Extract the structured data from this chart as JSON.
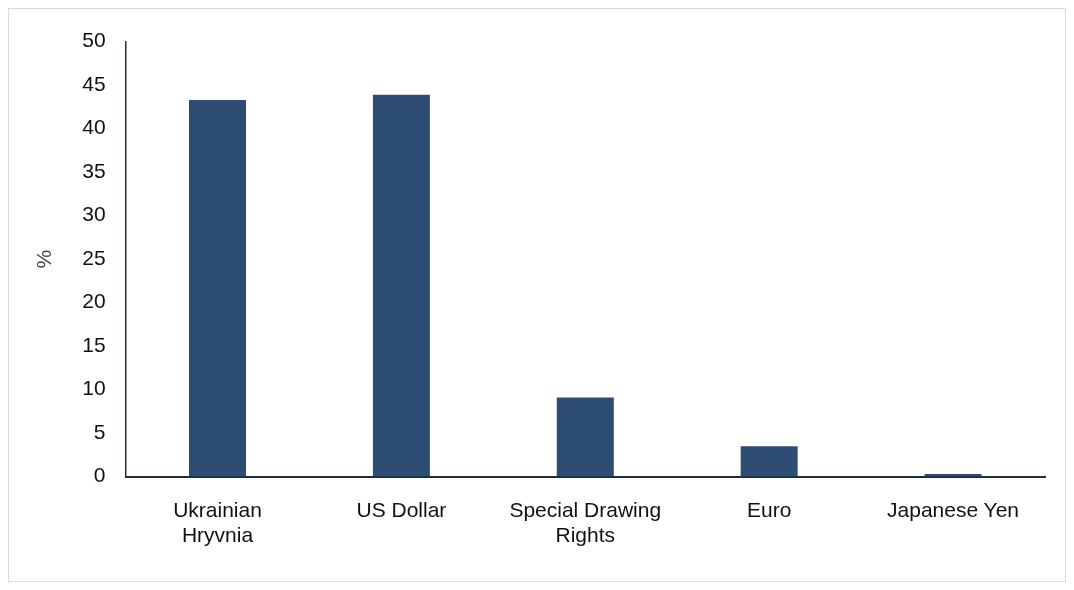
{
  "chart_data": {
    "type": "bar",
    "ylabel": "%",
    "categories": [
      "Ukrainian Hryvnia",
      "US Dollar",
      "Special Drawing Rights",
      "Euro",
      "Japanese Yen"
    ],
    "values": [
      43.3,
      43.9,
      9.1,
      3.5,
      0.3
    ],
    "color": "#2e4d74",
    "ylim": [
      0,
      50
    ],
    "yticks": [
      0,
      5,
      10,
      15,
      20,
      25,
      30,
      35,
      40,
      45,
      50
    ],
    "grid": false,
    "legend": false
  }
}
